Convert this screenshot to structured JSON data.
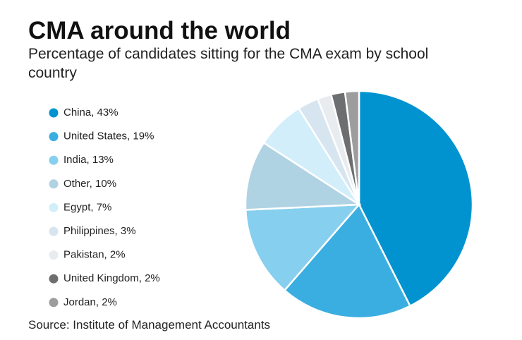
{
  "chart_data": {
    "type": "pie",
    "title": "CMA around the world",
    "subtitle": "Percentage of candidates sitting for the CMA exam by school country",
    "source": "Source: Institute of Management Accountants",
    "categories": [
      "China, 43%",
      "United States, 19%",
      "India, 13%",
      "Other, 10%",
      "Egypt, 7%",
      "Philippines, 3%",
      "Pakistan, 2%",
      "United Kingdom, 2%",
      "Jordan, 2%"
    ],
    "values": [
      43,
      19,
      13,
      10,
      7,
      3,
      2,
      2,
      2
    ],
    "colors": [
      "#0093d0",
      "#3aaee0",
      "#87cfee",
      "#b0d3e3",
      "#d3eefb",
      "#d6e5ef",
      "#e8ecef",
      "#6d6e70",
      "#9d9d9d"
    ]
  }
}
